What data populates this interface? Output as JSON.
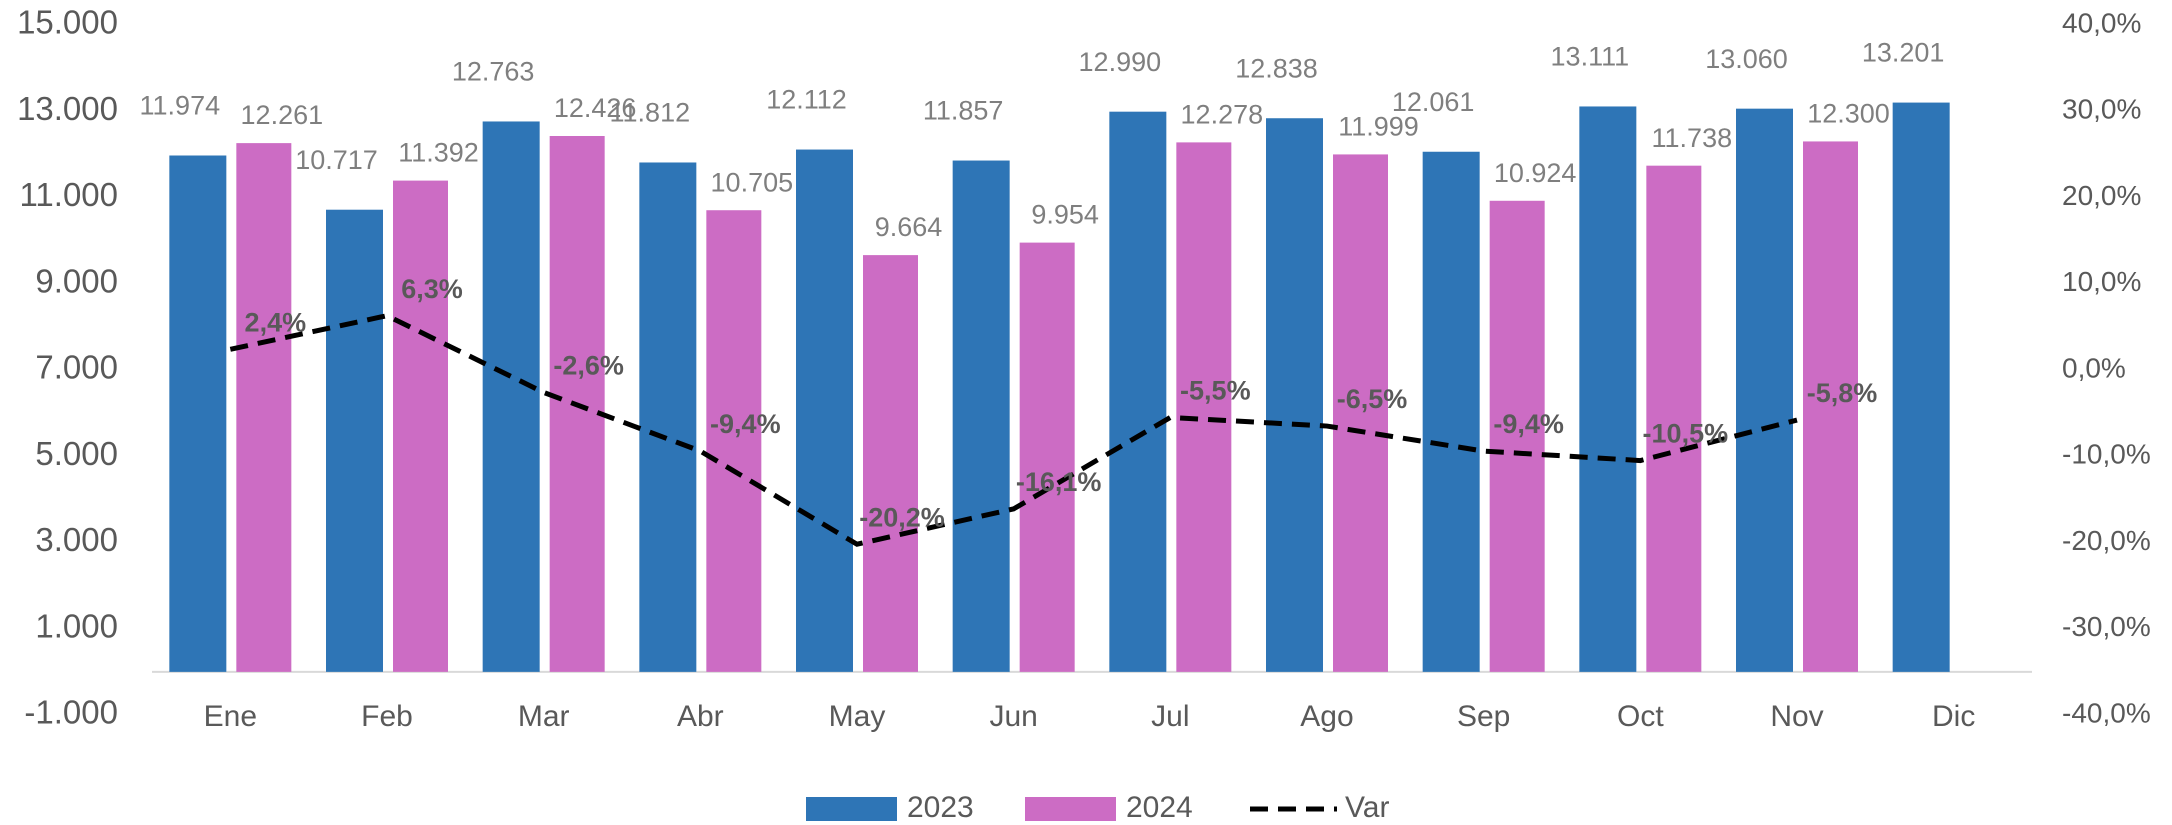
{
  "chart_data": {
    "type": "bar",
    "categories": [
      "Ene",
      "Feb",
      "Mar",
      "Abr",
      "May",
      "Jun",
      "Jul",
      "Ago",
      "Sep",
      "Oct",
      "Nov",
      "Dic"
    ],
    "series": [
      {
        "name": "2023",
        "color": "#2e75b6",
        "type": "bar",
        "values": [
          11974,
          10717,
          12763,
          11812,
          12112,
          11857,
          12990,
          12838,
          12061,
          13111,
          13060,
          13201
        ],
        "value_labels": [
          "11.974",
          "10.717",
          "12.763",
          "11.812",
          "12.112",
          "11.857",
          "12.990",
          "12.838",
          "12.061",
          "13.111",
          "13.060",
          "13.201"
        ]
      },
      {
        "name": "2024",
        "color": "#cc6cc4",
        "type": "bar",
        "values": [
          12261,
          11392,
          12426,
          10705,
          9664,
          9954,
          12278,
          11999,
          10924,
          11738,
          12300,
          null
        ],
        "value_labels": [
          "12.261",
          "11.392",
          "12.426",
          "10.705",
          "9.664",
          "9.954",
          "12.278",
          "11.999",
          "10.924",
          "11.738",
          "12.300",
          null
        ]
      },
      {
        "name": "Var",
        "color": "#000000",
        "type": "line",
        "axis": "y2",
        "dashed": true,
        "values": [
          2.4,
          6.3,
          -2.6,
          -9.4,
          -20.2,
          -16.1,
          -5.5,
          -6.5,
          -9.4,
          -10.5,
          -5.8,
          null
        ],
        "value_labels": [
          "2,4%",
          "6,3%",
          "-2,6%",
          "-9,4%",
          "-20,2%",
          "-16,1%",
          "-5,5%",
          "-6,5%",
          "-9,4%",
          "-10,5%",
          "-5,8%",
          null
        ]
      }
    ],
    "ylim": [
      -1000,
      15000
    ],
    "yticks": [
      {
        "value": -1000,
        "label": "-1.000"
      },
      {
        "value": 1000,
        "label": "1.000"
      },
      {
        "value": 3000,
        "label": "3.000"
      },
      {
        "value": 5000,
        "label": "5.000"
      },
      {
        "value": 7000,
        "label": "7.000"
      },
      {
        "value": 9000,
        "label": "9.000"
      },
      {
        "value": 11000,
        "label": "11.000"
      },
      {
        "value": 13000,
        "label": "13.000"
      },
      {
        "value": 15000,
        "label": "15.000"
      }
    ],
    "y2lim": [
      -40,
      40
    ],
    "y2ticks": [
      {
        "value": -40,
        "label": "-40,0%"
      },
      {
        "value": -30,
        "label": "-30,0%"
      },
      {
        "value": -20,
        "label": "-20,0%"
      },
      {
        "value": -10,
        "label": "-10,0%"
      },
      {
        "value": 0,
        "label": "0,0%"
      },
      {
        "value": 10,
        "label": "10,0%"
      },
      {
        "value": 20,
        "label": "20,0%"
      },
      {
        "value": 30,
        "label": "30,0%"
      },
      {
        "value": 40,
        "label": "40,0%"
      }
    ],
    "grid": false,
    "legend": "bottom"
  }
}
